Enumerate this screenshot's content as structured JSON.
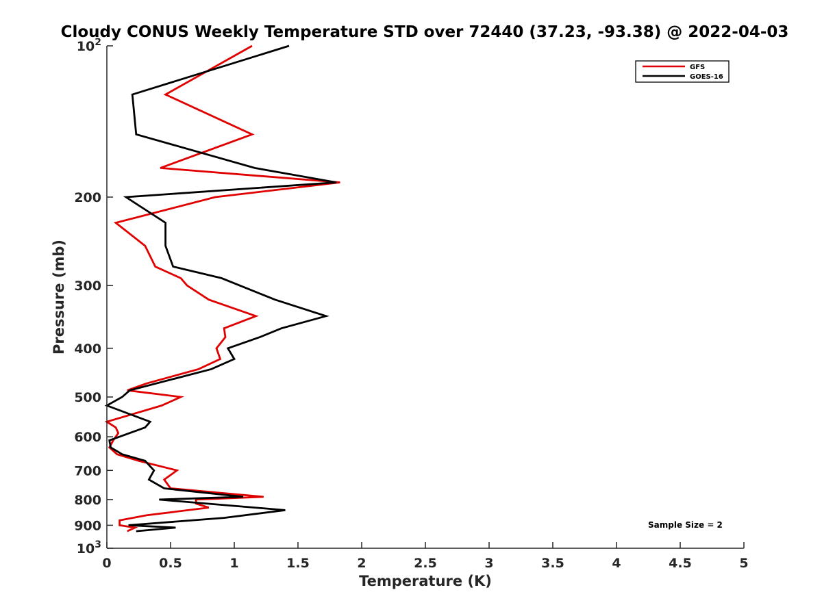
{
  "chart_data": {
    "type": "line",
    "title": "Cloudy CONUS Weekly Temperature STD over 72440 (37.23, -93.38) @ 2022-04-03",
    "xlabel": "Temperature (K)",
    "ylabel": "Pressure (mb)",
    "xlim": [
      0,
      5
    ],
    "ylim": [
      100,
      1000
    ],
    "y_scale": "log",
    "y_reversed": true,
    "grid": false,
    "legend_position": "top-right",
    "x_ticks": [
      {
        "value": 0,
        "label": "0"
      },
      {
        "value": 0.5,
        "label": "0.5"
      },
      {
        "value": 1,
        "label": "1"
      },
      {
        "value": 1.5,
        "label": "1.5"
      },
      {
        "value": 2,
        "label": "2"
      },
      {
        "value": 2.5,
        "label": "2.5"
      },
      {
        "value": 3,
        "label": "3"
      },
      {
        "value": 3.5,
        "label": "3.5"
      },
      {
        "value": 4,
        "label": "4"
      },
      {
        "value": 4.5,
        "label": "4.5"
      },
      {
        "value": 5,
        "label": "5"
      }
    ],
    "y_ticks": [
      {
        "value": 100,
        "base": "10",
        "exp": "2"
      },
      {
        "value": 200,
        "label": "200"
      },
      {
        "value": 300,
        "label": "300"
      },
      {
        "value": 400,
        "label": "400"
      },
      {
        "value": 500,
        "label": "500"
      },
      {
        "value": 600,
        "label": "600"
      },
      {
        "value": 700,
        "label": "700"
      },
      {
        "value": 800,
        "label": "800"
      },
      {
        "value": 900,
        "label": "900"
      },
      {
        "value": 1000,
        "base": "10",
        "exp": "3"
      }
    ],
    "series": [
      {
        "name": "GFS",
        "color": "#e00000",
        "points": [
          [
            1.14,
            100
          ],
          [
            0.46,
            125
          ],
          [
            1.14,
            150
          ],
          [
            0.42,
            175
          ],
          [
            1.83,
            187
          ],
          [
            0.85,
            200
          ],
          [
            0.07,
            225
          ],
          [
            0.3,
            250
          ],
          [
            0.38,
            275
          ],
          [
            0.58,
            290
          ],
          [
            0.63,
            300
          ],
          [
            0.8,
            320
          ],
          [
            1.17,
            345
          ],
          [
            0.92,
            365
          ],
          [
            0.93,
            380
          ],
          [
            0.86,
            400
          ],
          [
            0.89,
            420
          ],
          [
            0.72,
            440
          ],
          [
            0.31,
            470
          ],
          [
            0.16,
            485
          ],
          [
            0.58,
            500
          ],
          [
            0.43,
            520
          ],
          [
            0.0,
            560
          ],
          [
            0.07,
            575
          ],
          [
            0.09,
            590
          ],
          [
            0.05,
            610
          ],
          [
            0.02,
            630
          ],
          [
            0.08,
            650
          ],
          [
            0.25,
            670
          ],
          [
            0.55,
            700
          ],
          [
            0.45,
            730
          ],
          [
            0.5,
            760
          ],
          [
            1.23,
            790
          ],
          [
            0.7,
            800
          ],
          [
            0.7,
            815
          ],
          [
            0.8,
            830
          ],
          [
            0.31,
            860
          ],
          [
            0.1,
            880
          ],
          [
            0.1,
            900
          ],
          [
            0.22,
            910
          ],
          [
            0.16,
            925
          ]
        ]
      },
      {
        "name": "GOES-16",
        "color": "#000000",
        "points": [
          [
            1.43,
            100
          ],
          [
            0.2,
            125
          ],
          [
            0.23,
            150
          ],
          [
            1.16,
            175
          ],
          [
            1.8,
            187
          ],
          [
            0.15,
            200
          ],
          [
            0.46,
            225
          ],
          [
            0.46,
            250
          ],
          [
            0.52,
            275
          ],
          [
            0.9,
            290
          ],
          [
            1.32,
            320
          ],
          [
            1.72,
            345
          ],
          [
            1.37,
            365
          ],
          [
            1.2,
            380
          ],
          [
            0.95,
            400
          ],
          [
            1.0,
            420
          ],
          [
            0.82,
            440
          ],
          [
            0.18,
            485
          ],
          [
            0.12,
            500
          ],
          [
            0.0,
            520
          ],
          [
            0.34,
            560
          ],
          [
            0.3,
            575
          ],
          [
            0.02,
            610
          ],
          [
            0.03,
            630
          ],
          [
            0.12,
            650
          ],
          [
            0.3,
            670
          ],
          [
            0.37,
            700
          ],
          [
            0.33,
            730
          ],
          [
            0.45,
            760
          ],
          [
            1.07,
            790
          ],
          [
            0.41,
            800
          ],
          [
            1.16,
            830
          ],
          [
            1.4,
            840
          ],
          [
            0.92,
            870
          ],
          [
            0.17,
            900
          ],
          [
            0.54,
            910
          ],
          [
            0.23,
            925
          ]
        ]
      }
    ],
    "annotation": "Sample Size = 2"
  }
}
